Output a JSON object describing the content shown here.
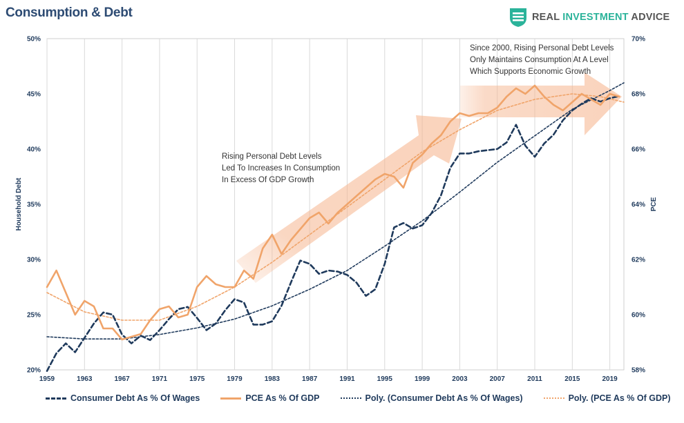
{
  "title": "Consumption & Debt",
  "brand": {
    "name_part1": "REAL ",
    "name_part2": "INVESTMENT",
    "name_part3": " ADVICE",
    "logo_icon": "shield-stripes-icon",
    "accent_color": "#2bb39a"
  },
  "chart_data": {
    "type": "line",
    "x_ticks": [
      "1959",
      "1963",
      "1967",
      "1971",
      "1975",
      "1979",
      "1983",
      "1987",
      "1991",
      "1995",
      "1999",
      "2003",
      "2007",
      "2011",
      "2015",
      "2019"
    ],
    "xlim": [
      1959,
      2020.5
    ],
    "y_left": {
      "label": "Household Debt",
      "ticks": [
        "20%",
        "25%",
        "30%",
        "35%",
        "40%",
        "45%",
        "50%"
      ],
      "range": [
        20,
        50
      ]
    },
    "y_right": {
      "label": "PCE",
      "ticks": [
        "58%",
        "60%",
        "62%",
        "64%",
        "66%",
        "68%",
        "70%"
      ],
      "range": [
        58,
        70
      ]
    },
    "grid": "vertical",
    "legend_position": "bottom",
    "series": [
      {
        "name": "Consumer Debt As % Of Wages",
        "axis": "left",
        "style": "dashed",
        "color": "#1f3a5c",
        "points": [
          [
            1959,
            19.9
          ],
          [
            1960,
            21.5
          ],
          [
            1961,
            22.4
          ],
          [
            1962,
            21.6
          ],
          [
            1963,
            22.9
          ],
          [
            1964,
            24.2
          ],
          [
            1965,
            25.2
          ],
          [
            1966,
            25.0
          ],
          [
            1967,
            23.2
          ],
          [
            1968,
            22.4
          ],
          [
            1969,
            23.1
          ],
          [
            1970,
            22.7
          ],
          [
            1971,
            23.6
          ],
          [
            1972,
            24.6
          ],
          [
            1973,
            25.5
          ],
          [
            1974,
            25.7
          ],
          [
            1975,
            24.7
          ],
          [
            1976,
            23.6
          ],
          [
            1977,
            24.2
          ],
          [
            1978,
            25.4
          ],
          [
            1979,
            26.4
          ],
          [
            1980,
            26.1
          ],
          [
            1981,
            24.1
          ],
          [
            1982,
            24.1
          ],
          [
            1983,
            24.4
          ],
          [
            1984,
            25.8
          ],
          [
            1985,
            27.9
          ],
          [
            1986,
            29.9
          ],
          [
            1987,
            29.6
          ],
          [
            1988,
            28.7
          ],
          [
            1989,
            29.0
          ],
          [
            1990,
            28.9
          ],
          [
            1991,
            28.6
          ],
          [
            1992,
            27.9
          ],
          [
            1993,
            26.7
          ],
          [
            1994,
            27.3
          ],
          [
            1995,
            29.6
          ],
          [
            1996,
            32.9
          ],
          [
            1997,
            33.3
          ],
          [
            1998,
            32.8
          ],
          [
            1999,
            33.1
          ],
          [
            2000,
            34.2
          ],
          [
            2001,
            35.8
          ],
          [
            2002,
            38.3
          ],
          [
            2003,
            39.6
          ],
          [
            2004,
            39.6
          ],
          [
            2005,
            39.8
          ],
          [
            2006,
            39.9
          ],
          [
            2007,
            40.0
          ],
          [
            2008,
            40.6
          ],
          [
            2009,
            42.2
          ],
          [
            2010,
            40.3
          ],
          [
            2011,
            39.3
          ],
          [
            2012,
            40.5
          ],
          [
            2013,
            41.3
          ],
          [
            2014,
            42.6
          ],
          [
            2015,
            43.5
          ],
          [
            2016,
            44.1
          ],
          [
            2017,
            44.6
          ],
          [
            2018,
            44.3
          ],
          [
            2019,
            44.6
          ],
          [
            2020,
            44.8
          ]
        ]
      },
      {
        "name": "PCE As % Of GDP",
        "axis": "right",
        "style": "solid",
        "color": "#f0a46a",
        "points": [
          [
            1959,
            61.0
          ],
          [
            1960,
            61.6
          ],
          [
            1961,
            60.8
          ],
          [
            1962,
            60.0
          ],
          [
            1963,
            60.5
          ],
          [
            1964,
            60.3
          ],
          [
            1965,
            59.5
          ],
          [
            1966,
            59.5
          ],
          [
            1967,
            59.1
          ],
          [
            1968,
            59.2
          ],
          [
            1969,
            59.3
          ],
          [
            1970,
            59.8
          ],
          [
            1971,
            60.2
          ],
          [
            1972,
            60.3
          ],
          [
            1973,
            59.9
          ],
          [
            1974,
            60.0
          ],
          [
            1975,
            61.0
          ],
          [
            1976,
            61.4
          ],
          [
            1977,
            61.1
          ],
          [
            1978,
            61.0
          ],
          [
            1979,
            61.0
          ],
          [
            1980,
            61.6
          ],
          [
            1981,
            61.3
          ],
          [
            1982,
            62.4
          ],
          [
            1983,
            62.9
          ],
          [
            1984,
            62.2
          ],
          [
            1985,
            62.7
          ],
          [
            1986,
            63.1
          ],
          [
            1987,
            63.5
          ],
          [
            1988,
            63.7
          ],
          [
            1989,
            63.3
          ],
          [
            1990,
            63.7
          ],
          [
            1991,
            64.0
          ],
          [
            1992,
            64.3
          ],
          [
            1993,
            64.6
          ],
          [
            1994,
            64.9
          ],
          [
            1995,
            65.1
          ],
          [
            1996,
            65.0
          ],
          [
            1997,
            64.6
          ],
          [
            1998,
            65.5
          ],
          [
            1999,
            65.8
          ],
          [
            2000,
            66.2
          ],
          [
            2001,
            66.5
          ],
          [
            2002,
            67.0
          ],
          [
            2003,
            67.3
          ],
          [
            2004,
            67.2
          ],
          [
            2005,
            67.3
          ],
          [
            2006,
            67.3
          ],
          [
            2007,
            67.5
          ],
          [
            2008,
            67.9
          ],
          [
            2009,
            68.2
          ],
          [
            2010,
            68.0
          ],
          [
            2011,
            68.3
          ],
          [
            2012,
            67.9
          ],
          [
            2013,
            67.6
          ],
          [
            2014,
            67.4
          ],
          [
            2015,
            67.7
          ],
          [
            2016,
            68.0
          ],
          [
            2017,
            67.8
          ],
          [
            2018,
            67.6
          ],
          [
            2019,
            68.0
          ],
          [
            2020,
            67.9
          ]
        ]
      },
      {
        "name": "Poly. (Consumer Debt As % Of Wages)",
        "axis": "left",
        "style": "dotted",
        "color": "#1f3a5c",
        "points": [
          [
            1959,
            23.0
          ],
          [
            1963,
            22.8
          ],
          [
            1967,
            22.8
          ],
          [
            1971,
            23.2
          ],
          [
            1975,
            23.8
          ],
          [
            1979,
            24.6
          ],
          [
            1983,
            25.8
          ],
          [
            1987,
            27.3
          ],
          [
            1991,
            29.0
          ],
          [
            1995,
            31.2
          ],
          [
            1999,
            33.5
          ],
          [
            2003,
            36.1
          ],
          [
            2007,
            38.8
          ],
          [
            2011,
            41.2
          ],
          [
            2015,
            43.6
          ],
          [
            2019,
            45.3
          ],
          [
            2020.5,
            46.0
          ]
        ]
      },
      {
        "name": "Poly. (PCE As % Of GDP)",
        "axis": "right",
        "style": "dotted",
        "color": "#f0a46a",
        "points": [
          [
            1959,
            60.8
          ],
          [
            1963,
            60.1
          ],
          [
            1967,
            59.8
          ],
          [
            1971,
            59.8
          ],
          [
            1975,
            60.3
          ],
          [
            1979,
            61.0
          ],
          [
            1983,
            61.9
          ],
          [
            1987,
            62.9
          ],
          [
            1991,
            63.9
          ],
          [
            1995,
            64.9
          ],
          [
            1999,
            65.9
          ],
          [
            2003,
            66.7
          ],
          [
            2007,
            67.4
          ],
          [
            2011,
            67.8
          ],
          [
            2015,
            68.0
          ],
          [
            2018,
            67.9
          ],
          [
            2020.5,
            67.7
          ]
        ]
      }
    ],
    "annotations": [
      {
        "lines": [
          "Rising Personal Debt Levels",
          "Led To Increases In Consumption",
          "In Excess Of GDP Growth"
        ]
      },
      {
        "lines": [
          "Since 2000, Rising Personal Debt Levels",
          "Only Maintains Consumption At A Level",
          "Which Supports Economic Growth"
        ]
      }
    ]
  }
}
